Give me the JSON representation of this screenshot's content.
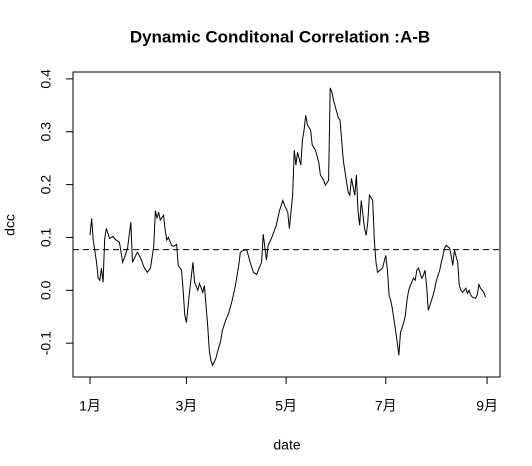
{
  "chart_data": {
    "type": "line",
    "title": "Dynamic Conditonal Correlation :A-B",
    "x_label": "date",
    "y_label": "dcc",
    "xlim": [
      -10.4,
      250.9
    ],
    "ylim": [
      -0.164,
      0.413
    ],
    "xticks": [
      {
        "value": 0,
        "label": "1月"
      },
      {
        "value": 59,
        "label": "3月"
      },
      {
        "value": 120,
        "label": "5月"
      },
      {
        "value": 181,
        "label": "7月"
      },
      {
        "value": 243,
        "label": "9月"
      }
    ],
    "yticks": [
      -0.1,
      {
        "value": 0,
        "label": "0.0"
      },
      0.1,
      0.2,
      0.3,
      0.4
    ],
    "hline": 0.077,
    "color": "#000000",
    "x": [
      0,
      1,
      2,
      4,
      5,
      6,
      7,
      8,
      9,
      10,
      12,
      14,
      16,
      18,
      20,
      21,
      23,
      25,
      26,
      28,
      29,
      31,
      33,
      35,
      37,
      39,
      40,
      41,
      42,
      43,
      45,
      46,
      47,
      48,
      50,
      51,
      53,
      54,
      56,
      57,
      58,
      59,
      61,
      63,
      64,
      66,
      67,
      69,
      70,
      72,
      73,
      74,
      75,
      77,
      78,
      80,
      81,
      83,
      85,
      87,
      89,
      91,
      92,
      94,
      96,
      98,
      100,
      102,
      103,
      105,
      106,
      108,
      109,
      111,
      114,
      116,
      118,
      119,
      121,
      122,
      124,
      125,
      126,
      127,
      129,
      130,
      131,
      132,
      133,
      135,
      136,
      138,
      140,
      141,
      143,
      144,
      146,
      147,
      148,
      149,
      151,
      152,
      153,
      154,
      155,
      157,
      158,
      159,
      160,
      162,
      163,
      164,
      165,
      166,
      168,
      169,
      170,
      171,
      173,
      174,
      175,
      176,
      179,
      181,
      182,
      183,
      184,
      185,
      187,
      188,
      189,
      190,
      192,
      193,
      194,
      195,
      196,
      198,
      199,
      200,
      201,
      203,
      204,
      205,
      206,
      207,
      209,
      210,
      211,
      212,
      214,
      215,
      216,
      217,
      218,
      220,
      221,
      222,
      223,
      225,
      226,
      227,
      228,
      230,
      231,
      232,
      233,
      234,
      236,
      237,
      238,
      239,
      241,
      242
    ],
    "values": [
      0.104,
      0.136,
      0.095,
      0.053,
      0.023,
      0.019,
      0.042,
      0.015,
      0.098,
      0.117,
      0.098,
      0.102,
      0.095,
      0.091,
      0.053,
      0.061,
      0.08,
      0.129,
      0.053,
      0.066,
      0.072,
      0.061,
      0.044,
      0.034,
      0.042,
      0.083,
      0.151,
      0.136,
      0.148,
      0.133,
      0.142,
      0.114,
      0.095,
      0.1,
      0.085,
      0.083,
      0.087,
      0.047,
      0.038,
      0.0,
      -0.047,
      -0.061,
      0.0,
      0.053,
      0.015,
      0.0,
      0.013,
      -0.004,
      0.009,
      -0.066,
      -0.114,
      -0.133,
      -0.142,
      -0.129,
      -0.117,
      -0.095,
      -0.076,
      -0.057,
      -0.042,
      -0.019,
      0.009,
      0.047,
      0.072,
      0.076,
      0.076,
      0.053,
      0.034,
      0.03,
      0.038,
      0.053,
      0.106,
      0.057,
      0.085,
      0.098,
      0.123,
      0.151,
      0.17,
      0.161,
      0.148,
      0.117,
      0.18,
      0.265,
      0.237,
      0.261,
      0.237,
      0.284,
      0.303,
      0.331,
      0.313,
      0.303,
      0.275,
      0.265,
      0.242,
      0.218,
      0.208,
      0.199,
      0.208,
      0.383,
      0.375,
      0.36,
      0.337,
      0.326,
      0.322,
      0.284,
      0.246,
      0.205,
      0.186,
      0.18,
      0.212,
      0.18,
      0.218,
      0.151,
      0.123,
      0.17,
      0.117,
      0.104,
      0.129,
      0.18,
      0.17,
      0.095,
      0.053,
      0.034,
      0.042,
      0.066,
      0.038,
      -0.009,
      -0.019,
      -0.034,
      -0.076,
      -0.098,
      -0.123,
      -0.08,
      -0.061,
      -0.047,
      -0.019,
      0.0,
      0.009,
      0.023,
      0.019,
      0.038,
      0.042,
      0.023,
      0.028,
      0.038,
      0.008,
      -0.038,
      -0.019,
      -0.009,
      0.004,
      0.019,
      0.038,
      0.053,
      0.066,
      0.08,
      0.085,
      0.08,
      0.066,
      0.047,
      0.076,
      0.053,
      0.009,
      0.0,
      -0.004,
      0.004,
      -0.006,
      0.0,
      -0.009,
      -0.013,
      -0.015,
      -0.008,
      0.011,
      0.004,
      -0.004,
      -0.013
    ]
  }
}
